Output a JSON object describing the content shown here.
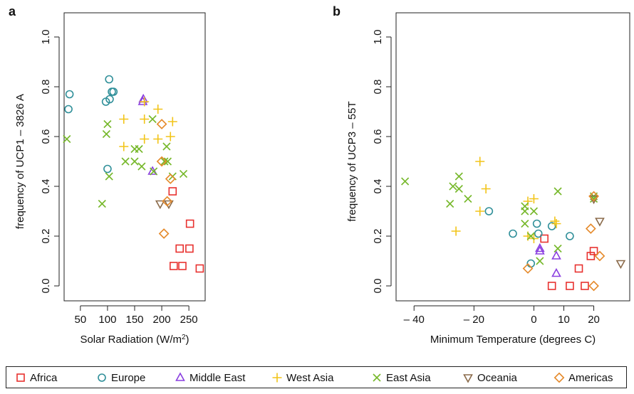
{
  "chart_data": [
    {
      "panel_label": "a",
      "type": "scatter",
      "xlabel": "Solar Radiation (W/m²)",
      "ylabel": "frequency of  UCP1 – 3826 A",
      "xlim": [
        20,
        280
      ],
      "ylim": [
        0,
        1.0
      ],
      "xticks": [
        50,
        100,
        150,
        200,
        250
      ],
      "yticks": [
        0.0,
        0.2,
        0.4,
        0.6,
        0.8,
        1.0
      ],
      "yticklabels": [
        "0.0",
        "0.2",
        "0.4",
        "0.6",
        "0.8",
        "1.0"
      ],
      "series": [
        {
          "name": "Africa",
          "points": [
            [
              220,
              0.38
            ],
            [
              252,
              0.25
            ],
            [
              233,
              0.15
            ],
            [
              251,
              0.15
            ],
            [
              222,
              0.08
            ],
            [
              238,
              0.08
            ],
            [
              270,
              0.07
            ]
          ]
        },
        {
          "name": "Europe",
          "points": [
            [
              30,
              0.77
            ],
            [
              28,
              0.71
            ],
            [
              103,
              0.83
            ],
            [
              108,
              0.78
            ],
            [
              111,
              0.78
            ],
            [
              104,
              0.75
            ],
            [
              97,
              0.74
            ],
            [
              100,
              0.47
            ]
          ]
        },
        {
          "name": "Middle East",
          "points": [
            [
              166,
              0.75
            ],
            [
              165,
              0.74
            ],
            [
              183,
              0.46
            ]
          ]
        },
        {
          "name": "West Asia",
          "points": [
            [
              168,
              0.74
            ],
            [
              130,
              0.67
            ],
            [
              168,
              0.67
            ],
            [
              193,
              0.71
            ],
            [
              220,
              0.66
            ],
            [
              130,
              0.56
            ],
            [
              168,
              0.59
            ],
            [
              193,
              0.59
            ],
            [
              216,
              0.6
            ]
          ]
        },
        {
          "name": "East Asia",
          "points": [
            [
              25,
              0.59
            ],
            [
              100,
              0.65
            ],
            [
              98,
              0.61
            ],
            [
              103,
              0.44
            ],
            [
              90,
              0.33
            ],
            [
              133,
              0.5
            ],
            [
              150,
              0.55
            ],
            [
              158,
              0.55
            ],
            [
              150,
              0.5
            ],
            [
              163,
              0.48
            ],
            [
              183,
              0.67
            ],
            [
              209,
              0.56
            ],
            [
              205,
              0.5
            ],
            [
              211,
              0.5
            ],
            [
              220,
              0.44
            ],
            [
              240,
              0.45
            ],
            [
              185,
              0.46
            ]
          ]
        },
        {
          "name": "Oceania",
          "points": [
            [
              197,
              0.33
            ],
            [
              213,
              0.33
            ]
          ]
        },
        {
          "name": "Americas",
          "points": [
            [
              200,
              0.65
            ],
            [
              200,
              0.5
            ],
            [
              216,
              0.43
            ],
            [
              210,
              0.34
            ],
            [
              204,
              0.21
            ]
          ]
        }
      ]
    },
    {
      "panel_label": "b",
      "type": "scatter",
      "xlabel": "Minimum Temperature (degrees C)",
      "ylabel": "frequency of  UCP3 – 55T",
      "xlim": [
        -46,
        32
      ],
      "ylim": [
        0,
        1.0
      ],
      "xticks": [
        -40,
        -20,
        0,
        10,
        20
      ],
      "xticklabels": [
        "– 40",
        "– 20",
        "0",
        "10",
        "20"
      ],
      "yticks": [
        0.0,
        0.2,
        0.4,
        0.6,
        0.8,
        1.0
      ],
      "yticklabels": [
        "0.0",
        "0.2",
        "0.4",
        "0.6",
        "0.8",
        "1.0"
      ],
      "series": [
        {
          "name": "Africa",
          "points": [
            [
              3.5,
              0.19
            ],
            [
              15,
              0.07
            ],
            [
              6,
              0.0
            ],
            [
              12,
              0.0
            ],
            [
              17,
              0.0
            ],
            [
              19,
              0.12
            ],
            [
              20,
              0.14
            ]
          ]
        },
        {
          "name": "Europe",
          "points": [
            [
              -15,
              0.3
            ],
            [
              -7,
              0.21
            ],
            [
              1,
              0.25
            ],
            [
              6,
              0.24
            ],
            [
              1.5,
              0.21
            ],
            [
              12,
              0.2
            ],
            [
              -1,
              0.09
            ]
          ]
        },
        {
          "name": "Middle East",
          "points": [
            [
              2,
              0.15
            ],
            [
              2,
              0.14
            ],
            [
              7.5,
              0.12
            ],
            [
              7.5,
              0.05
            ]
          ]
        },
        {
          "name": "West Asia",
          "points": [
            [
              -18,
              0.5
            ],
            [
              -16,
              0.39
            ],
            [
              -26,
              0.22
            ],
            [
              -18,
              0.3
            ],
            [
              -2,
              0.34
            ],
            [
              0,
              0.35
            ],
            [
              7,
              0.26
            ],
            [
              7.5,
              0.25
            ],
            [
              -2,
              0.2
            ],
            [
              0,
              0.19
            ]
          ]
        },
        {
          "name": "East Asia",
          "points": [
            [
              -43,
              0.42
            ],
            [
              -25,
              0.44
            ],
            [
              -27,
              0.4
            ],
            [
              -25,
              0.39
            ],
            [
              -22,
              0.35
            ],
            [
              -28,
              0.33
            ],
            [
              -3,
              0.32
            ],
            [
              -3,
              0.3
            ],
            [
              0,
              0.3
            ],
            [
              -3,
              0.25
            ],
            [
              8,
              0.38
            ],
            [
              -1,
              0.2
            ],
            [
              8,
              0.15
            ],
            [
              2,
              0.1
            ],
            [
              20,
              0.35
            ],
            [
              20,
              0.36
            ]
          ]
        },
        {
          "name": "Oceania",
          "points": [
            [
              22,
              0.26
            ],
            [
              29,
              0.09
            ],
            [
              20,
              0.35
            ]
          ]
        },
        {
          "name": "Americas",
          "points": [
            [
              20,
              0.36
            ],
            [
              19,
              0.23
            ],
            [
              22,
              0.12
            ],
            [
              -2,
              0.07
            ],
            [
              20,
              0.0
            ]
          ]
        }
      ]
    }
  ],
  "legend": {
    "placement": "bottom",
    "items": [
      {
        "name": "Africa",
        "marker": "square",
        "color": "#e8312f"
      },
      {
        "name": "Europe",
        "marker": "circle",
        "color": "#2f8f99"
      },
      {
        "name": "Middle East",
        "marker": "triangle-up",
        "color": "#8a3fe0"
      },
      {
        "name": "West Asia",
        "marker": "plus",
        "color": "#f2c418"
      },
      {
        "name": "East Asia",
        "marker": "cross",
        "color": "#76b82a"
      },
      {
        "name": "Oceania",
        "marker": "triangle-down",
        "color": "#8a6a4a"
      },
      {
        "name": "Americas",
        "marker": "diamond",
        "color": "#e58a2b"
      }
    ]
  }
}
